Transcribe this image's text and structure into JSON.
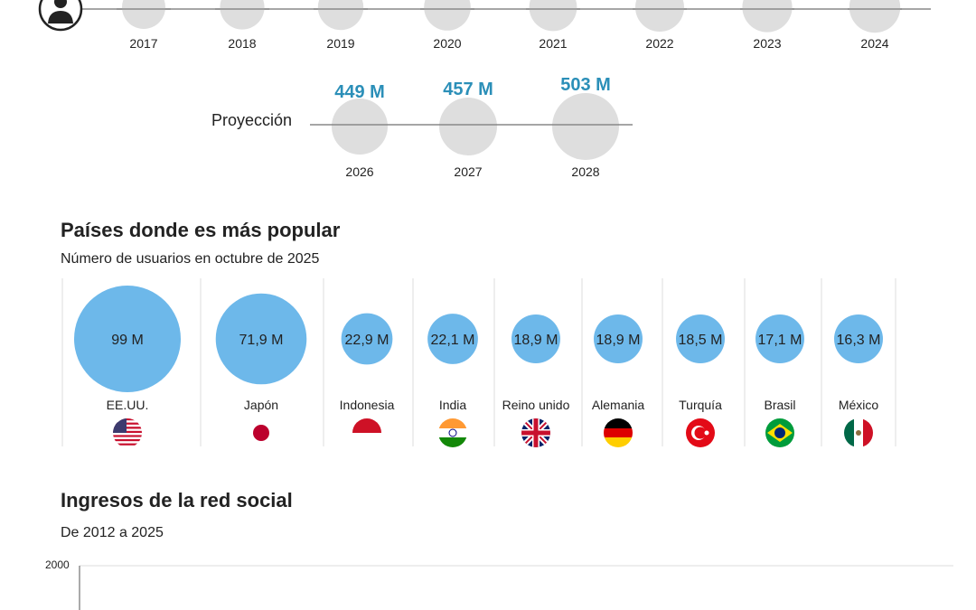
{
  "colors": {
    "bubble_history": "#dedede",
    "bubble_country": "#6db8ea",
    "projection_value": "#2b8fb8",
    "line": "#888888"
  },
  "timeline": {
    "icon": "person-icon",
    "years": [
      "2017",
      "2018",
      "2019",
      "2020",
      "2021",
      "2022",
      "2023",
      "2024"
    ]
  },
  "projection": {
    "label": "Proyección",
    "items": [
      {
        "year": "2026",
        "value": 449,
        "value_label": "449 M"
      },
      {
        "year": "2027",
        "value": 457,
        "value_label": "457 M"
      },
      {
        "year": "2028",
        "value": 503,
        "value_label": "503 M"
      }
    ]
  },
  "countries": {
    "title": "Países donde es más popular",
    "subtitle": "Número de usuarios en octubre de 2025",
    "items": [
      {
        "name": "EE.UU.",
        "value": 99,
        "value_label": "99 M",
        "flag": "flag-us-icon"
      },
      {
        "name": "Japón",
        "value": 71.9,
        "value_label": "71,9 M",
        "flag": "flag-jp-icon"
      },
      {
        "name": "Indonesia",
        "value": 22.9,
        "value_label": "22,9 M",
        "flag": "flag-id-icon"
      },
      {
        "name": "India",
        "value": 22.1,
        "value_label": "22,1 M",
        "flag": "flag-in-icon"
      },
      {
        "name": "Reino unido",
        "value": 18.9,
        "value_label": "18,9 M",
        "flag": "flag-gb-icon"
      },
      {
        "name": "Alemania",
        "value": 18.9,
        "value_label": "18,9 M",
        "flag": "flag-de-icon"
      },
      {
        "name": "Turquía",
        "value": 18.5,
        "value_label": "18,5 M",
        "flag": "flag-tr-icon"
      },
      {
        "name": "Brasil",
        "value": 17.1,
        "value_label": "17,1 M",
        "flag": "flag-br-icon"
      },
      {
        "name": "México",
        "value": 16.3,
        "value_label": "16,3 M",
        "flag": "flag-mx-icon"
      }
    ]
  },
  "revenue": {
    "title": "Ingresos de la red social",
    "subtitle": "De 2012 a 2025",
    "y_ticks": [
      "2000"
    ]
  },
  "chart_data": [
    {
      "type": "scatter",
      "title": "",
      "categories": [
        "2026",
        "2027",
        "2028"
      ],
      "values": [
        449,
        457,
        503
      ],
      "unit": "M"
    },
    {
      "type": "scatter",
      "title": "Países donde es más popular",
      "subtitle": "Número de usuarios en octubre de 2025",
      "categories": [
        "EE.UU.",
        "Japón",
        "Indonesia",
        "India",
        "Reino unido",
        "Alemania",
        "Turquía",
        "Brasil",
        "México"
      ],
      "values": [
        99,
        71.9,
        22.9,
        22.1,
        18.9,
        18.9,
        18.5,
        17.1,
        16.3
      ],
      "unit": "M"
    },
    {
      "type": "line",
      "title": "Ingresos de la red social",
      "subtitle": "De 2012 a 2025",
      "y_ticks": [
        2000
      ],
      "grid": true
    }
  ]
}
